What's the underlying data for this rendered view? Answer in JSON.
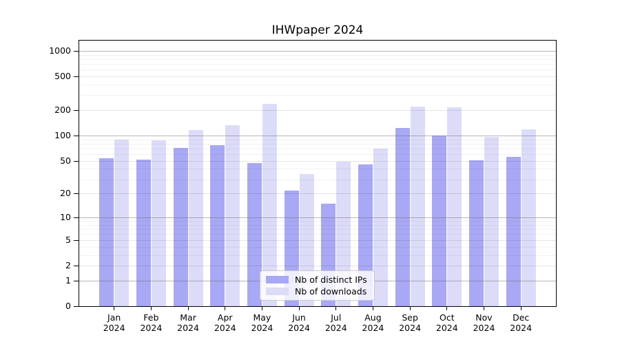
{
  "title": "IHWpaper 2024",
  "chart_data": {
    "type": "bar",
    "title": "IHWpaper 2024",
    "categories": [
      "Jan 2024",
      "Feb 2024",
      "Mar 2024",
      "Apr 2024",
      "May 2024",
      "Jun 2024",
      "Jul 2024",
      "Aug 2024",
      "Sep 2024",
      "Oct 2024",
      "Nov 2024",
      "Dec 2024"
    ],
    "series": [
      {
        "name": "Nb of distinct IPs",
        "color": "#a8a8f4",
        "values": [
          54,
          52,
          72,
          77,
          47,
          22,
          15,
          45,
          122,
          100,
          51,
          56
        ]
      },
      {
        "name": "Nb of downloads",
        "color": "#dcdcf9",
        "values": [
          89,
          87,
          116,
          132,
          235,
          35,
          49,
          70,
          220,
          215,
          96,
          118
        ]
      }
    ],
    "yscale": "log1p",
    "ylim": [
      0,
      1290
    ],
    "xlabel": "",
    "ylabel": "",
    "y_tick_labels": [
      "1000",
      "500",
      "200",
      "100",
      "50",
      "20",
      "10",
      "5",
      "2",
      "1",
      "0"
    ],
    "y_tick_values": [
      1000,
      500,
      200,
      100,
      50,
      20,
      10,
      5,
      2,
      1,
      0
    ],
    "y_major_gridlines": [
      1000,
      100,
      10,
      1
    ],
    "grid": true,
    "legend_position": "lower-center-inside"
  },
  "legend": {
    "items": [
      {
        "label": "Nb of distinct IPs",
        "swatch_color": "#a8a8f4"
      },
      {
        "label": "Nb of downloads",
        "swatch_color": "#dcdcf9"
      }
    ]
  }
}
